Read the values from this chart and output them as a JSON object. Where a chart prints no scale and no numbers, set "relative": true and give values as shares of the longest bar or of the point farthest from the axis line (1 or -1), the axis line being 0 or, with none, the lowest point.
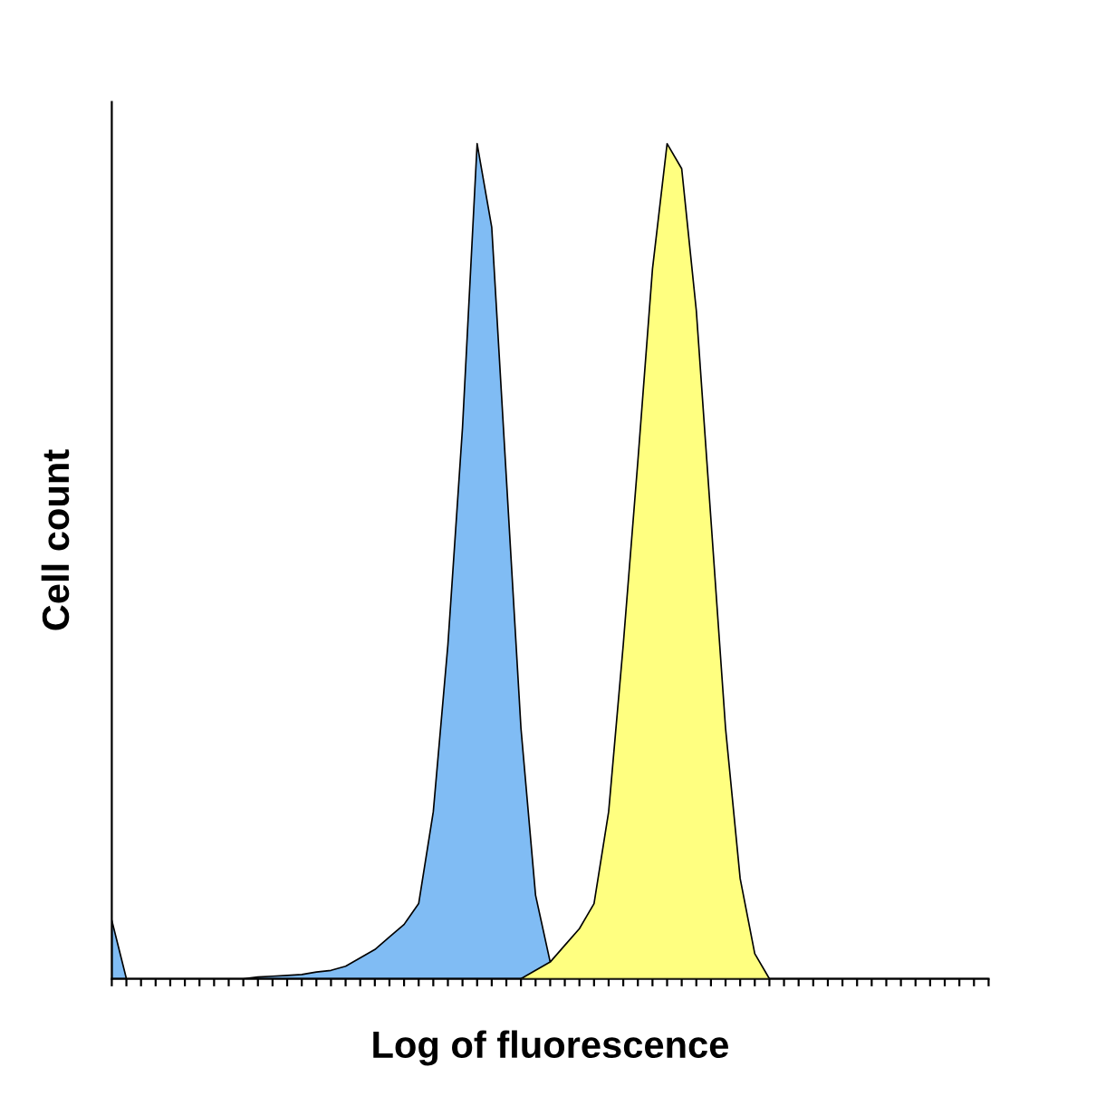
{
  "chart_data": {
    "type": "area",
    "relative": true,
    "xlabel": "Log of fluorescence",
    "ylabel": "Cell count",
    "grid": false,
    "categories": [
      null,
      null,
      null,
      null,
      null,
      null,
      null,
      null,
      null,
      null,
      null,
      null,
      null,
      null,
      null,
      null,
      null,
      null,
      null,
      null,
      null,
      null,
      null,
      null,
      null,
      null,
      null,
      null,
      null,
      null,
      null,
      null,
      null,
      null,
      null,
      null,
      null,
      null,
      null,
      null,
      null,
      null,
      null,
      null,
      null,
      null,
      null,
      null,
      null,
      null,
      null,
      null,
      null,
      null,
      null,
      null,
      null,
      null,
      null,
      null,
      null
    ],
    "series": [
      {
        "color": "#80bcf4",
        "values": [
          0.07,
          0,
          0,
          0,
          0,
          0,
          0,
          0,
          0,
          0,
          0.002,
          0.003,
          0.004,
          0.005,
          0.008,
          0.01,
          0.015,
          0.025,
          0.035,
          0.05,
          0.065,
          0.09,
          0.2,
          0.4,
          0.66,
          1.0,
          0.9,
          0.6,
          0.3,
          0.1,
          0.02,
          0,
          0,
          0,
          0,
          0,
          0,
          0,
          0,
          0,
          0,
          0,
          0,
          0,
          0,
          0,
          0,
          0,
          0,
          0,
          0,
          0,
          0,
          0,
          0,
          0,
          0,
          0,
          0,
          0,
          0
        ]
      },
      {
        "color": "#ffff80",
        "values": [
          null,
          null,
          null,
          null,
          null,
          null,
          null,
          null,
          null,
          null,
          null,
          null,
          null,
          null,
          null,
          null,
          null,
          null,
          null,
          null,
          null,
          null,
          null,
          null,
          null,
          null,
          null,
          null,
          0,
          0.01,
          0.02,
          0.04,
          0.06,
          0.09,
          0.2,
          0.4,
          0.62,
          0.85,
          1.0,
          0.97,
          0.8,
          0.55,
          0.3,
          0.12,
          0.03,
          0,
          null,
          null,
          null,
          null,
          null,
          null,
          null,
          null,
          null,
          null,
          null,
          null,
          null,
          null,
          null
        ]
      }
    ]
  }
}
